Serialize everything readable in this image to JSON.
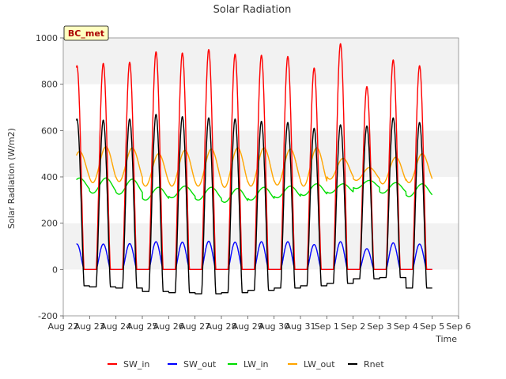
{
  "chart_data": {
    "type": "line",
    "title": "Solar Radiation",
    "xlabel": "Time",
    "ylabel": "Solar Radiation (W/m2)",
    "station_label": "BC_met",
    "ylim": [
      -200,
      1000
    ],
    "yticks": [
      -200,
      0,
      200,
      400,
      600,
      800,
      1000
    ],
    "xlim": [
      0,
      15
    ],
    "xticks": [
      {
        "x": 0,
        "label": "Aug 22"
      },
      {
        "x": 1,
        "label": "Aug 23"
      },
      {
        "x": 2,
        "label": "Aug 24"
      },
      {
        "x": 3,
        "label": "Aug 25"
      },
      {
        "x": 4,
        "label": "Aug 26"
      },
      {
        "x": 5,
        "label": "Aug 27"
      },
      {
        "x": 6,
        "label": "Aug 28"
      },
      {
        "x": 7,
        "label": "Aug 29"
      },
      {
        "x": 8,
        "label": "Aug 30"
      },
      {
        "x": 9,
        "label": "Aug 31"
      },
      {
        "x": 10,
        "label": "Sep 1"
      },
      {
        "x": 11,
        "label": "Sep 2"
      },
      {
        "x": 12,
        "label": "Sep 3"
      },
      {
        "x": 13,
        "label": "Sep 4"
      },
      {
        "x": 14,
        "label": "Sep 5"
      },
      {
        "x": 15,
        "label": "Sep 6"
      }
    ],
    "grid": true,
    "legend_position": "bottom",
    "series": [
      {
        "name": "SW_in",
        "color": "#ff0000",
        "day_start": 0.5,
        "daily_max": [
          880,
          890,
          895,
          940,
          935,
          950,
          930,
          925,
          920,
          870,
          975,
          790,
          905,
          880
        ],
        "night_value": 0
      },
      {
        "name": "SW_out",
        "color": "#0000ff",
        "day_start": 0.5,
        "daily_max": [
          110,
          110,
          112,
          120,
          118,
          122,
          118,
          120,
          120,
          108,
          120,
          90,
          115,
          110
        ],
        "night_value": 0
      },
      {
        "name": "LW_in",
        "color": "#00dd00",
        "day_start": 0.5,
        "daily_max": [
          395,
          395,
          390,
          355,
          360,
          355,
          350,
          355,
          360,
          370,
          370,
          385,
          375,
          370
        ],
        "daily_min": [
          340,
          330,
          325,
          300,
          310,
          300,
          290,
          300,
          310,
          320,
          330,
          350,
          330,
          315
        ]
      },
      {
        "name": "LW_out",
        "color": "#ffa500",
        "day_start": 0.5,
        "daily_max": [
          510,
          530,
          525,
          500,
          515,
          520,
          525,
          525,
          520,
          525,
          480,
          440,
          485,
          500
        ],
        "daily_min": [
          380,
          375,
          380,
          360,
          360,
          360,
          355,
          360,
          365,
          360,
          390,
          385,
          370,
          375
        ]
      },
      {
        "name": "Rnet",
        "color": "#000000",
        "day_start": 0.5,
        "daily_max": [
          650,
          645,
          650,
          670,
          660,
          655,
          650,
          640,
          635,
          610,
          625,
          620,
          655,
          635
        ],
        "night_value": [
          -70,
          -75,
          -80,
          -95,
          -100,
          -105,
          -100,
          -90,
          -80,
          -70,
          -60,
          -40,
          -35,
          -80
        ]
      }
    ]
  }
}
